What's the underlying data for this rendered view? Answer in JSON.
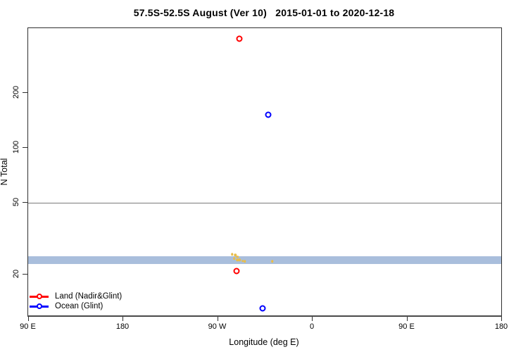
{
  "title": "57.5S-52.5S August (Ver 10)   2015-01-01 to 2020-12-18",
  "axes": {
    "x_label": "Longitude (deg E)",
    "y_label": "N Total"
  },
  "legend": {
    "items": [
      {
        "label": "Land (Nadir&Glint)",
        "color": "#ff0000"
      },
      {
        "label": "Ocean (Glint)",
        "color": "#0000ff"
      }
    ]
  },
  "chart_data": {
    "type": "scatter",
    "title": "57.5S-52.5S August (Ver 10)   2015-01-01 to 2020-12-18",
    "xlabel": "Longitude (deg E)",
    "ylabel": "N Total",
    "x_axis": {
      "scale": "linear",
      "range_deg_e": [
        90,
        540
      ],
      "tick_values": [
        90,
        180,
        270,
        360,
        450,
        540
      ],
      "tick_labels": [
        "90 E",
        "180",
        "90 W",
        "0",
        "90 E",
        "180"
      ]
    },
    "y_axis": {
      "scale": "log",
      "range": [
        11.5,
        460
      ],
      "tick_values": [
        20,
        50,
        100,
        200
      ],
      "tick_labels": [
        "20",
        "50",
        "100",
        "200"
      ]
    },
    "grid": false,
    "legend_position": "bottom-left",
    "series": [
      {
        "name": "Land (Nadir&Glint)",
        "color": "#ff0000",
        "marker": "open-circle",
        "points": [
          {
            "lon_deg_e": 291,
            "n_total": 400
          },
          {
            "lon_deg_e": 288,
            "n_total": 21
          }
        ]
      },
      {
        "name": "Ocean (Glint)",
        "color": "#0000ff",
        "marker": "open-circle",
        "points": [
          {
            "lon_deg_e": 318,
            "n_total": 152
          },
          {
            "lon_deg_e": 313,
            "n_total": 13
          }
        ]
      }
    ],
    "unlabeled_markers": {
      "color": "#e8bd4a",
      "marker": "small-dot",
      "points": [
        {
          "lon_deg_e": 284,
          "n_total": 25.9
        },
        {
          "lon_deg_e": 287,
          "n_total": 25.6
        },
        {
          "lon_deg_e": 289,
          "n_total": 25.1
        },
        {
          "lon_deg_e": 286,
          "n_total": 24.5
        },
        {
          "lon_deg_e": 289,
          "n_total": 24.1
        },
        {
          "lon_deg_e": 291,
          "n_total": 24.1
        },
        {
          "lon_deg_e": 294,
          "n_total": 23.8
        },
        {
          "lon_deg_e": 296,
          "n_total": 23.6
        },
        {
          "lon_deg_e": 322,
          "n_total": 23.7
        }
      ]
    },
    "horizontal_band": {
      "color": "#a9bedc",
      "n_min": 22.8,
      "n_max": 25.3
    },
    "reference_line": {
      "n": 50,
      "color": "#7a7a7a"
    }
  }
}
